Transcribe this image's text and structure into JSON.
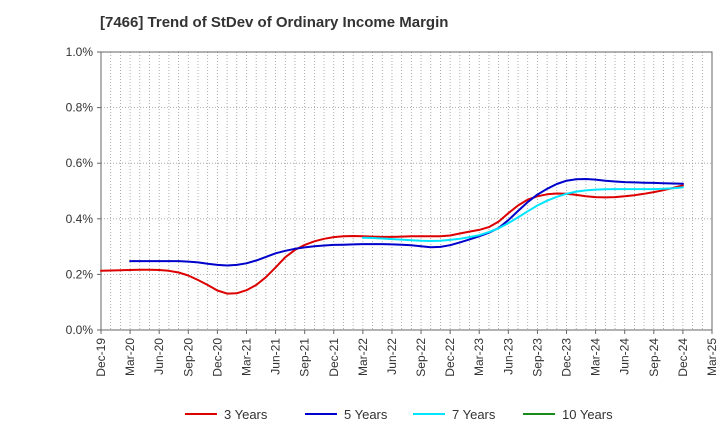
{
  "chart_data": {
    "type": "line",
    "title": "[7466]  Trend of StDev of Ordinary Income Margin",
    "xlabel": "",
    "ylabel": "",
    "ylim": [
      0,
      1.0
    ],
    "y_ticks": [
      "0.0%",
      "0.2%",
      "0.4%",
      "0.6%",
      "0.8%",
      "1.0%"
    ],
    "y_tick_values": [
      0,
      0.2,
      0.4,
      0.6,
      0.8,
      1.0
    ],
    "x_tick_labels": [
      "Dec-19",
      "Mar-20",
      "Jun-20",
      "Sep-20",
      "Dec-20",
      "Mar-21",
      "Jun-21",
      "Sep-21",
      "Dec-21",
      "Mar-22",
      "Jun-22",
      "Sep-22",
      "Dec-22",
      "Mar-23",
      "Jun-23",
      "Sep-23",
      "Dec-23",
      "Mar-24",
      "Jun-24",
      "Sep-24",
      "Dec-24",
      "Mar-25"
    ],
    "x_range_months": [
      "2019-12",
      "2025-03"
    ],
    "grid": true,
    "legend_position": "bottom",
    "series": [
      {
        "name": "3 Years",
        "color": "#dd0000",
        "points": [
          [
            "2019-12",
            0.213
          ],
          [
            "2020-01",
            0.214
          ],
          [
            "2020-02",
            0.215
          ],
          [
            "2020-03",
            0.216
          ],
          [
            "2020-04",
            0.217
          ],
          [
            "2020-05",
            0.217
          ],
          [
            "2020-06",
            0.216
          ],
          [
            "2020-07",
            0.213
          ],
          [
            "2020-08",
            0.207
          ],
          [
            "2020-09",
            0.196
          ],
          [
            "2020-10",
            0.18
          ],
          [
            "2020-11",
            0.162
          ],
          [
            "2020-12",
            0.142
          ],
          [
            "2021-01",
            0.131
          ],
          [
            "2021-02",
            0.132
          ],
          [
            "2021-03",
            0.143
          ],
          [
            "2021-04",
            0.162
          ],
          [
            "2021-05",
            0.19
          ],
          [
            "2021-06",
            0.225
          ],
          [
            "2021-07",
            0.262
          ],
          [
            "2021-08",
            0.288
          ],
          [
            "2021-09",
            0.306
          ],
          [
            "2021-10",
            0.319
          ],
          [
            "2021-11",
            0.328
          ],
          [
            "2021-12",
            0.334
          ],
          [
            "2022-01",
            0.337
          ],
          [
            "2022-02",
            0.338
          ],
          [
            "2022-03",
            0.337
          ],
          [
            "2022-04",
            0.336
          ],
          [
            "2022-05",
            0.335
          ],
          [
            "2022-06",
            0.335
          ],
          [
            "2022-07",
            0.336
          ],
          [
            "2022-08",
            0.337
          ],
          [
            "2022-09",
            0.337
          ],
          [
            "2022-10",
            0.337
          ],
          [
            "2022-11",
            0.337
          ],
          [
            "2022-12",
            0.34
          ],
          [
            "2023-01",
            0.347
          ],
          [
            "2023-02",
            0.354
          ],
          [
            "2023-03",
            0.36
          ],
          [
            "2023-04",
            0.37
          ],
          [
            "2023-05",
            0.39
          ],
          [
            "2023-06",
            0.42
          ],
          [
            "2023-07",
            0.448
          ],
          [
            "2023-08",
            0.469
          ],
          [
            "2023-09",
            0.481
          ],
          [
            "2023-10",
            0.488
          ],
          [
            "2023-11",
            0.491
          ],
          [
            "2023-12",
            0.49
          ],
          [
            "2024-01",
            0.486
          ],
          [
            "2024-02",
            0.481
          ],
          [
            "2024-03",
            0.478
          ],
          [
            "2024-04",
            0.477
          ],
          [
            "2024-05",
            0.478
          ],
          [
            "2024-06",
            0.481
          ],
          [
            "2024-07",
            0.485
          ],
          [
            "2024-08",
            0.49
          ],
          [
            "2024-09",
            0.496
          ],
          [
            "2024-10",
            0.503
          ],
          [
            "2024-11",
            0.511
          ],
          [
            "2024-12",
            0.52
          ]
        ]
      },
      {
        "name": "5 Years",
        "color": "#0000cc",
        "points": [
          [
            "2020-03",
            0.248
          ],
          [
            "2020-04",
            0.248
          ],
          [
            "2020-05",
            0.248
          ],
          [
            "2020-06",
            0.248
          ],
          [
            "2020-07",
            0.248
          ],
          [
            "2020-08",
            0.248
          ],
          [
            "2020-09",
            0.246
          ],
          [
            "2020-10",
            0.243
          ],
          [
            "2020-11",
            0.238
          ],
          [
            "2020-12",
            0.234
          ],
          [
            "2021-01",
            0.232
          ],
          [
            "2021-02",
            0.234
          ],
          [
            "2021-03",
            0.24
          ],
          [
            "2021-04",
            0.25
          ],
          [
            "2021-05",
            0.263
          ],
          [
            "2021-06",
            0.276
          ],
          [
            "2021-07",
            0.285
          ],
          [
            "2021-08",
            0.292
          ],
          [
            "2021-09",
            0.297
          ],
          [
            "2021-10",
            0.301
          ],
          [
            "2021-11",
            0.304
          ],
          [
            "2021-12",
            0.306
          ],
          [
            "2022-01",
            0.307
          ],
          [
            "2022-02",
            0.308
          ],
          [
            "2022-03",
            0.309
          ],
          [
            "2022-04",
            0.309
          ],
          [
            "2022-05",
            0.309
          ],
          [
            "2022-06",
            0.308
          ],
          [
            "2022-07",
            0.307
          ],
          [
            "2022-08",
            0.305
          ],
          [
            "2022-09",
            0.301
          ],
          [
            "2022-10",
            0.298
          ],
          [
            "2022-11",
            0.299
          ],
          [
            "2022-12",
            0.305
          ],
          [
            "2023-01",
            0.315
          ],
          [
            "2023-02",
            0.326
          ],
          [
            "2023-03",
            0.337
          ],
          [
            "2023-04",
            0.35
          ],
          [
            "2023-05",
            0.367
          ],
          [
            "2023-06",
            0.395
          ],
          [
            "2023-07",
            0.428
          ],
          [
            "2023-08",
            0.46
          ],
          [
            "2023-09",
            0.487
          ],
          [
            "2023-10",
            0.508
          ],
          [
            "2023-11",
            0.525
          ],
          [
            "2023-12",
            0.537
          ],
          [
            "2024-01",
            0.542
          ],
          [
            "2024-02",
            0.543
          ],
          [
            "2024-03",
            0.541
          ],
          [
            "2024-04",
            0.537
          ],
          [
            "2024-05",
            0.534
          ],
          [
            "2024-06",
            0.532
          ],
          [
            "2024-07",
            0.531
          ],
          [
            "2024-08",
            0.53
          ],
          [
            "2024-09",
            0.529
          ],
          [
            "2024-10",
            0.528
          ],
          [
            "2024-11",
            0.527
          ],
          [
            "2024-12",
            0.526
          ]
        ]
      },
      {
        "name": "7 Years",
        "color": "#00e5ff",
        "points": [
          [
            "2022-03",
            0.332
          ],
          [
            "2022-04",
            0.331
          ],
          [
            "2022-05",
            0.329
          ],
          [
            "2022-06",
            0.327
          ],
          [
            "2022-07",
            0.325
          ],
          [
            "2022-08",
            0.323
          ],
          [
            "2022-09",
            0.321
          ],
          [
            "2022-10",
            0.32
          ],
          [
            "2022-11",
            0.321
          ],
          [
            "2022-12",
            0.324
          ],
          [
            "2023-01",
            0.328
          ],
          [
            "2023-02",
            0.334
          ],
          [
            "2023-03",
            0.341
          ],
          [
            "2023-04",
            0.352
          ],
          [
            "2023-05",
            0.366
          ],
          [
            "2023-06",
            0.384
          ],
          [
            "2023-07",
            0.405
          ],
          [
            "2023-08",
            0.427
          ],
          [
            "2023-09",
            0.448
          ],
          [
            "2023-10",
            0.465
          ],
          [
            "2023-11",
            0.479
          ],
          [
            "2023-12",
            0.49
          ],
          [
            "2024-01",
            0.498
          ],
          [
            "2024-02",
            0.502
          ],
          [
            "2024-03",
            0.505
          ],
          [
            "2024-04",
            0.506
          ],
          [
            "2024-05",
            0.507
          ],
          [
            "2024-06",
            0.507
          ],
          [
            "2024-07",
            0.507
          ],
          [
            "2024-08",
            0.507
          ],
          [
            "2024-09",
            0.507
          ],
          [
            "2024-10",
            0.508
          ],
          [
            "2024-11",
            0.51
          ],
          [
            "2024-12",
            0.513
          ]
        ]
      },
      {
        "name": "10 Years",
        "color": "#1a8a1a",
        "points": []
      }
    ]
  }
}
